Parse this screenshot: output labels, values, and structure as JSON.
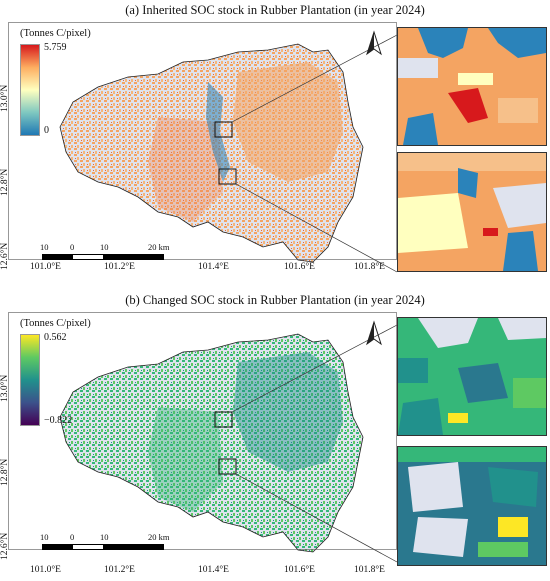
{
  "panel_a": {
    "title": "(a) Inherited SOC stock in Rubber Plantation (in year 2024)",
    "legend_unit": "(Tonnes C/pixel)",
    "legend_max": "5.759",
    "legend_min": "0",
    "colors": {
      "low": "#1f78b4",
      "mid": "#ffffbf",
      "high": "#d7191c",
      "bg": "#dfe3ee",
      "fill": "#f4a462"
    }
  },
  "panel_b": {
    "title": "(b) Changed SOC stock in Rubber Plantation (in year 2024)",
    "legend_unit": "(Tonnes C/pixel)",
    "legend_max": "0.562",
    "legend_min": "−0.822",
    "colors": {
      "low": "#440154",
      "mid": "#21918c",
      "high": "#fde725",
      "bg": "#dfe3ee",
      "fill": "#35b779"
    }
  },
  "axes": {
    "lat_ticks": [
      "13.0°N",
      "12.8°N",
      "12.6°N"
    ],
    "lon_ticks": [
      "101.0°E",
      "101.2°E",
      "101.4°E",
      "101.6°E",
      "101.8°E"
    ]
  },
  "scale_bar": {
    "labels": [
      "10",
      "0",
      "10",
      "20 km"
    ]
  },
  "north_arrow": "north-arrow-icon"
}
